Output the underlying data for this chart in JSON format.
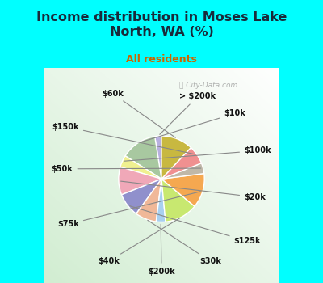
{
  "title": "Income distribution in Moses Lake\nNorth, WA (%)",
  "subtitle": "All residents",
  "watermark": "ⓘ City-Data.com",
  "labels": [
    "> $200k",
    "$10k",
    "$100k",
    "$20k",
    "$125k",
    "$30k",
    "$200k",
    "$40k",
    "$75k",
    "$50k",
    "$150k",
    "$60k"
  ],
  "values": [
    2.5,
    13.5,
    4.5,
    10.5,
    9.0,
    8.0,
    3.5,
    12.5,
    13.0,
    4.0,
    7.0,
    12.0
  ],
  "colors": [
    "#b8b0e0",
    "#a8c8a0",
    "#f0f090",
    "#f0a8b8",
    "#9090cc",
    "#f0b898",
    "#a8d0f0",
    "#c8e870",
    "#f5a850",
    "#c0b8a8",
    "#f09090",
    "#c8b840"
  ],
  "background_top": "#00ffff",
  "background_chart_color": "#d0ead0",
  "title_color": "#1a2a3a",
  "subtitle_color": "#cc6600",
  "label_color": "#111111",
  "startangle": 90,
  "figsize": [
    4.0,
    3.5
  ],
  "dpi": 100
}
